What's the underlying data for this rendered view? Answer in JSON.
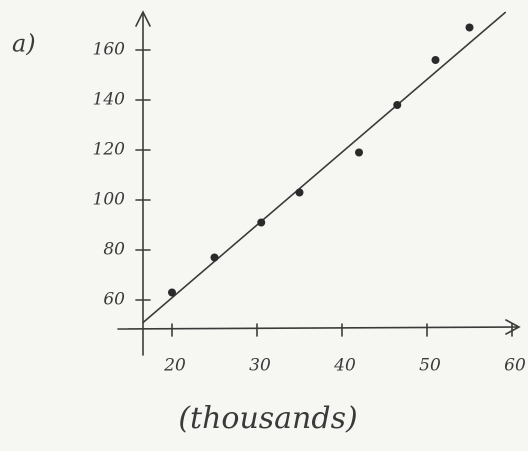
{
  "chart_data": {
    "type": "scatter",
    "panel_label": "a)",
    "x_label": "(thousands)",
    "x": [
      20,
      25,
      30.5,
      35,
      42,
      46.5,
      51,
      55
    ],
    "values": [
      63,
      77,
      91,
      103,
      119,
      138,
      156,
      169
    ],
    "color": "#2a2a2a",
    "trendline": {
      "x": [
        16.6,
        59.2
      ],
      "y": [
        51,
        175
      ]
    },
    "xlim": [
      14,
      61
    ],
    "ylim": [
      48,
      174
    ],
    "xticks": [
      20,
      30,
      40,
      50,
      60
    ],
    "yticks": [
      60,
      80,
      100,
      120,
      140,
      160
    ]
  }
}
